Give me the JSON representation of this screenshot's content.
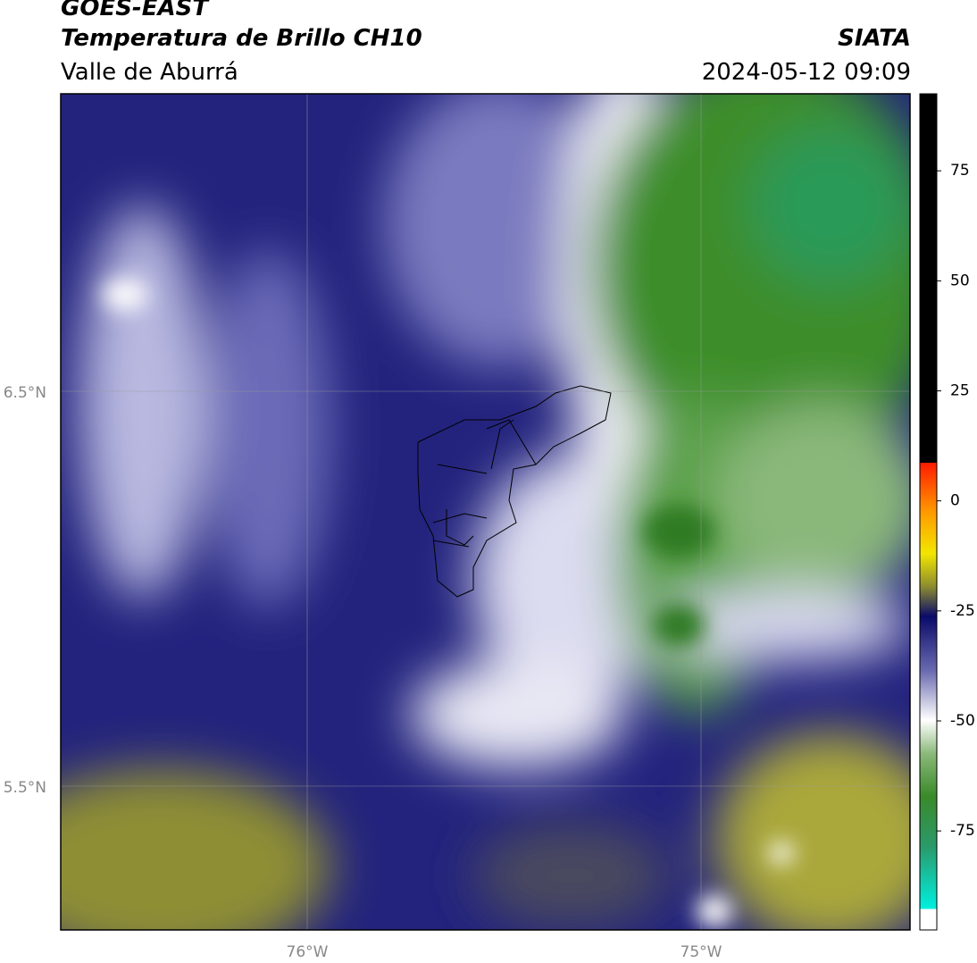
{
  "header": {
    "title": "GOES-EAST",
    "subtitle": "Temperatura de Brillo CH10",
    "region": "Valle de Aburrá",
    "source": "SIATA",
    "datetime": "2024-05-12 09:09"
  },
  "map": {
    "lat_labels": [
      "6.5°N",
      "5.5°N"
    ],
    "lon_labels": [
      "76°W",
      "75°W"
    ]
  },
  "colorbar": {
    "lim": [
      -97.5,
      92.5
    ],
    "ticks": [
      75,
      50,
      25,
      0,
      -25,
      -50,
      -75
    ]
  }
}
